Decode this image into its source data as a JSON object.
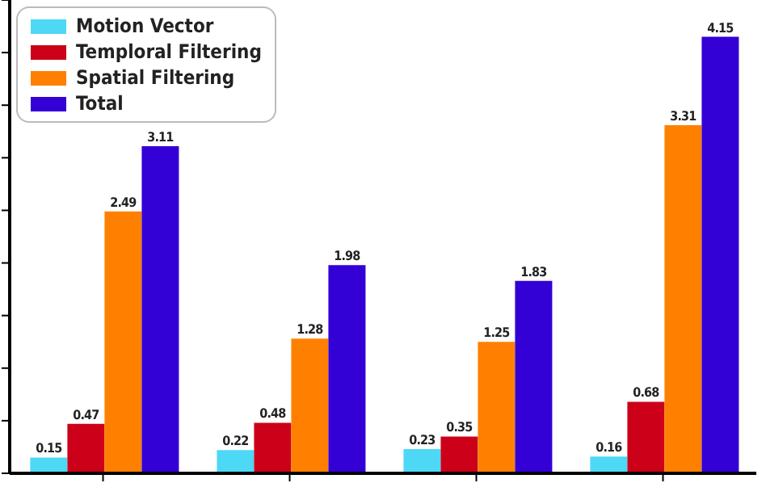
{
  "chart_data": {
    "type": "bar",
    "categories": [
      null,
      null,
      null,
      null
    ],
    "series": [
      {
        "name": "Motion Vector",
        "color": "#4dd8f5",
        "values": [
          0.15,
          0.22,
          0.23,
          0.16
        ]
      },
      {
        "name": "Temploral Filtering",
        "color": "#cc0018",
        "values": [
          0.47,
          0.48,
          0.35,
          0.68
        ]
      },
      {
        "name": "Spatial Filtering",
        "color": "#ff8000",
        "values": [
          2.49,
          1.28,
          1.25,
          3.31
        ]
      },
      {
        "name": "Total",
        "color": "#3300d6",
        "values": [
          3.11,
          1.98,
          1.83,
          4.15
        ]
      }
    ],
    "ylim": [
      0,
      4.5
    ],
    "yticks": [
      {
        "value": 0,
        "label": null
      },
      {
        "value": 0.5,
        "label": null
      },
      {
        "value": 1,
        "label": null
      },
      {
        "value": 1.5,
        "label": null
      },
      {
        "value": 2,
        "label": null
      },
      {
        "value": 2.5,
        "label": null
      },
      {
        "value": 3,
        "label": null
      },
      {
        "value": 3.5,
        "label": null
      },
      {
        "value": 4,
        "label": null
      },
      {
        "value": 4.5,
        "label": null
      }
    ],
    "grid": false,
    "legend": "top left",
    "data_labels": true
  }
}
